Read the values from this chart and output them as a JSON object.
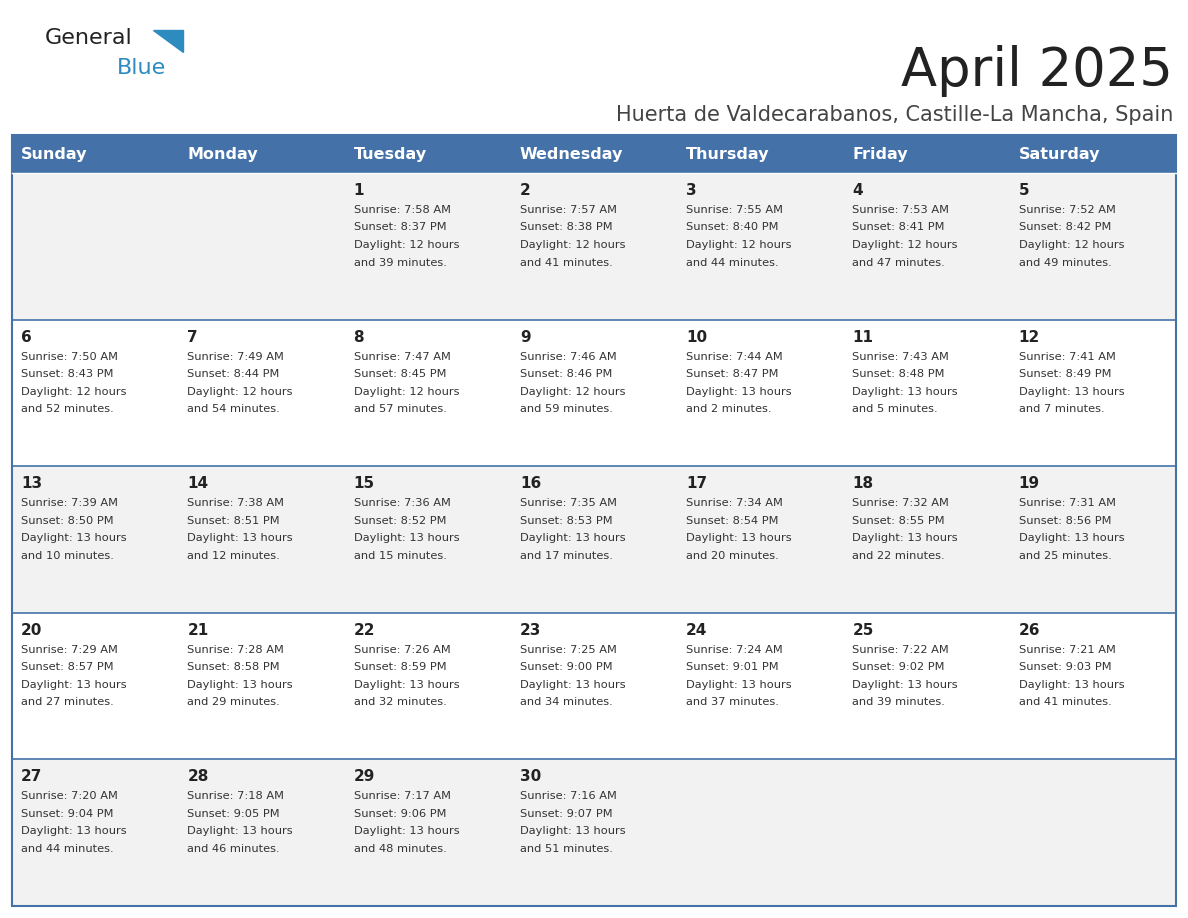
{
  "title": "April 2025",
  "subtitle": "Huerta de Valdecarabanos, Castille-La Mancha, Spain",
  "days_of_week": [
    "Sunday",
    "Monday",
    "Tuesday",
    "Wednesday",
    "Thursday",
    "Friday",
    "Saturday"
  ],
  "header_bg": "#4472A8",
  "header_text": "#FFFFFF",
  "row_bg_odd": "#F2F2F2",
  "row_bg_even": "#FFFFFF",
  "cell_border_color": "#4472A8",
  "day_number_color": "#222222",
  "text_color": "#333333",
  "logo_general_color": "#222222",
  "logo_blue_color": "#2E8BC0",
  "calendar": [
    [
      {
        "day": "",
        "sunrise": "",
        "sunset": "",
        "daylight": ""
      },
      {
        "day": "",
        "sunrise": "",
        "sunset": "",
        "daylight": ""
      },
      {
        "day": "1",
        "sunrise": "7:58 AM",
        "sunset": "8:37 PM",
        "daylight": "12 hours\nand 39 minutes."
      },
      {
        "day": "2",
        "sunrise": "7:57 AM",
        "sunset": "8:38 PM",
        "daylight": "12 hours\nand 41 minutes."
      },
      {
        "day": "3",
        "sunrise": "7:55 AM",
        "sunset": "8:40 PM",
        "daylight": "12 hours\nand 44 minutes."
      },
      {
        "day": "4",
        "sunrise": "7:53 AM",
        "sunset": "8:41 PM",
        "daylight": "12 hours\nand 47 minutes."
      },
      {
        "day": "5",
        "sunrise": "7:52 AM",
        "sunset": "8:42 PM",
        "daylight": "12 hours\nand 49 minutes."
      }
    ],
    [
      {
        "day": "6",
        "sunrise": "7:50 AM",
        "sunset": "8:43 PM",
        "daylight": "12 hours\nand 52 minutes."
      },
      {
        "day": "7",
        "sunrise": "7:49 AM",
        "sunset": "8:44 PM",
        "daylight": "12 hours\nand 54 minutes."
      },
      {
        "day": "8",
        "sunrise": "7:47 AM",
        "sunset": "8:45 PM",
        "daylight": "12 hours\nand 57 minutes."
      },
      {
        "day": "9",
        "sunrise": "7:46 AM",
        "sunset": "8:46 PM",
        "daylight": "12 hours\nand 59 minutes."
      },
      {
        "day": "10",
        "sunrise": "7:44 AM",
        "sunset": "8:47 PM",
        "daylight": "13 hours\nand 2 minutes."
      },
      {
        "day": "11",
        "sunrise": "7:43 AM",
        "sunset": "8:48 PM",
        "daylight": "13 hours\nand 5 minutes."
      },
      {
        "day": "12",
        "sunrise": "7:41 AM",
        "sunset": "8:49 PM",
        "daylight": "13 hours\nand 7 minutes."
      }
    ],
    [
      {
        "day": "13",
        "sunrise": "7:39 AM",
        "sunset": "8:50 PM",
        "daylight": "13 hours\nand 10 minutes."
      },
      {
        "day": "14",
        "sunrise": "7:38 AM",
        "sunset": "8:51 PM",
        "daylight": "13 hours\nand 12 minutes."
      },
      {
        "day": "15",
        "sunrise": "7:36 AM",
        "sunset": "8:52 PM",
        "daylight": "13 hours\nand 15 minutes."
      },
      {
        "day": "16",
        "sunrise": "7:35 AM",
        "sunset": "8:53 PM",
        "daylight": "13 hours\nand 17 minutes."
      },
      {
        "day": "17",
        "sunrise": "7:34 AM",
        "sunset": "8:54 PM",
        "daylight": "13 hours\nand 20 minutes."
      },
      {
        "day": "18",
        "sunrise": "7:32 AM",
        "sunset": "8:55 PM",
        "daylight": "13 hours\nand 22 minutes."
      },
      {
        "day": "19",
        "sunrise": "7:31 AM",
        "sunset": "8:56 PM",
        "daylight": "13 hours\nand 25 minutes."
      }
    ],
    [
      {
        "day": "20",
        "sunrise": "7:29 AM",
        "sunset": "8:57 PM",
        "daylight": "13 hours\nand 27 minutes."
      },
      {
        "day": "21",
        "sunrise": "7:28 AM",
        "sunset": "8:58 PM",
        "daylight": "13 hours\nand 29 minutes."
      },
      {
        "day": "22",
        "sunrise": "7:26 AM",
        "sunset": "8:59 PM",
        "daylight": "13 hours\nand 32 minutes."
      },
      {
        "day": "23",
        "sunrise": "7:25 AM",
        "sunset": "9:00 PM",
        "daylight": "13 hours\nand 34 minutes."
      },
      {
        "day": "24",
        "sunrise": "7:24 AM",
        "sunset": "9:01 PM",
        "daylight": "13 hours\nand 37 minutes."
      },
      {
        "day": "25",
        "sunrise": "7:22 AM",
        "sunset": "9:02 PM",
        "daylight": "13 hours\nand 39 minutes."
      },
      {
        "day": "26",
        "sunrise": "7:21 AM",
        "sunset": "9:03 PM",
        "daylight": "13 hours\nand 41 minutes."
      }
    ],
    [
      {
        "day": "27",
        "sunrise": "7:20 AM",
        "sunset": "9:04 PM",
        "daylight": "13 hours\nand 44 minutes."
      },
      {
        "day": "28",
        "sunrise": "7:18 AM",
        "sunset": "9:05 PM",
        "daylight": "13 hours\nand 46 minutes."
      },
      {
        "day": "29",
        "sunrise": "7:17 AM",
        "sunset": "9:06 PM",
        "daylight": "13 hours\nand 48 minutes."
      },
      {
        "day": "30",
        "sunrise": "7:16 AM",
        "sunset": "9:07 PM",
        "daylight": "13 hours\nand 51 minutes."
      },
      {
        "day": "",
        "sunrise": "",
        "sunset": "",
        "daylight": ""
      },
      {
        "day": "",
        "sunrise": "",
        "sunset": "",
        "daylight": ""
      },
      {
        "day": "",
        "sunrise": "",
        "sunset": "",
        "daylight": ""
      }
    ]
  ],
  "figsize": [
    11.88,
    9.18
  ],
  "dpi": 100
}
